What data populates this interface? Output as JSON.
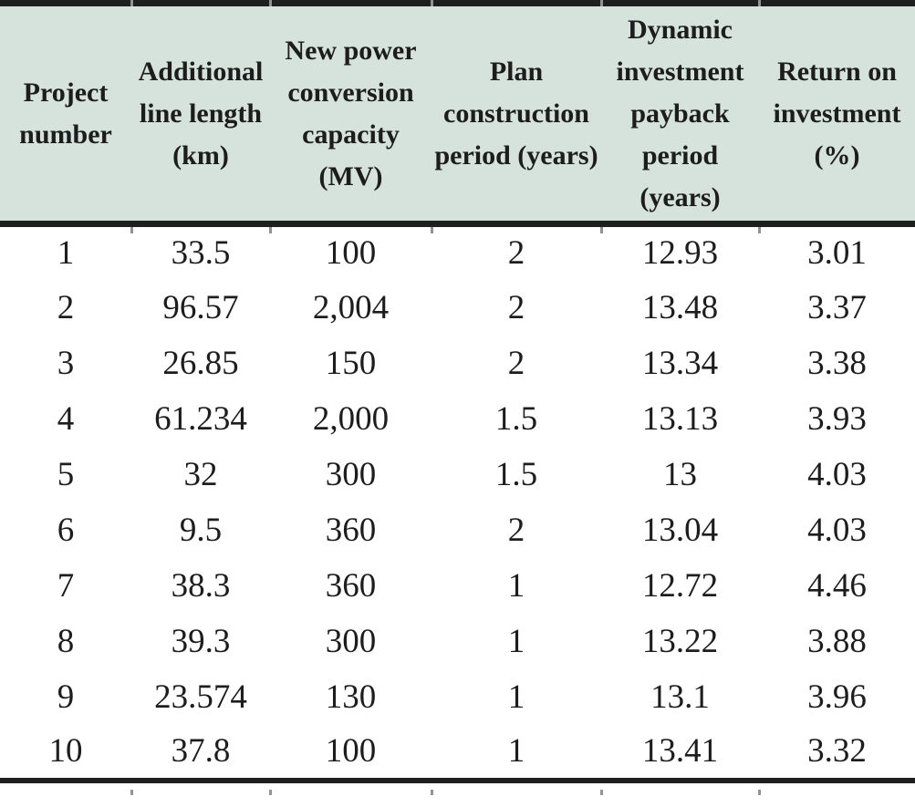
{
  "table": {
    "headers": [
      "Project number",
      "Additional line length (km)",
      "New power conversion capacity (MV)",
      "Plan construction period (years)",
      "Dynamic investment payback period (years)",
      "Return on investment (%)"
    ],
    "rows": [
      [
        "1",
        "33.5",
        "100",
        "2",
        "12.93",
        "3.01"
      ],
      [
        "2",
        "96.57",
        "2,004",
        "2",
        "13.48",
        "3.37"
      ],
      [
        "3",
        "26.85",
        "150",
        "2",
        "13.34",
        "3.38"
      ],
      [
        "4",
        "61.234",
        "2,000",
        "1.5",
        "13.13",
        "3.93"
      ],
      [
        "5",
        "32",
        "300",
        "1.5",
        "13",
        "4.03"
      ],
      [
        "6",
        "9.5",
        "360",
        "2",
        "13.04",
        "4.03"
      ],
      [
        "7",
        "38.3",
        "360",
        "1",
        "12.72",
        "4.46"
      ],
      [
        "8",
        "39.3",
        "300",
        "1",
        "13.22",
        "3.88"
      ],
      [
        "9",
        "23.574",
        "130",
        "1",
        "13.1",
        "3.96"
      ],
      [
        "10",
        "37.8",
        "100",
        "1",
        "13.41",
        "3.32"
      ]
    ],
    "colors": {
      "header_bg": "#d6e2dc",
      "rule": "#1f1f1f",
      "text": "#1d1d1d"
    }
  }
}
